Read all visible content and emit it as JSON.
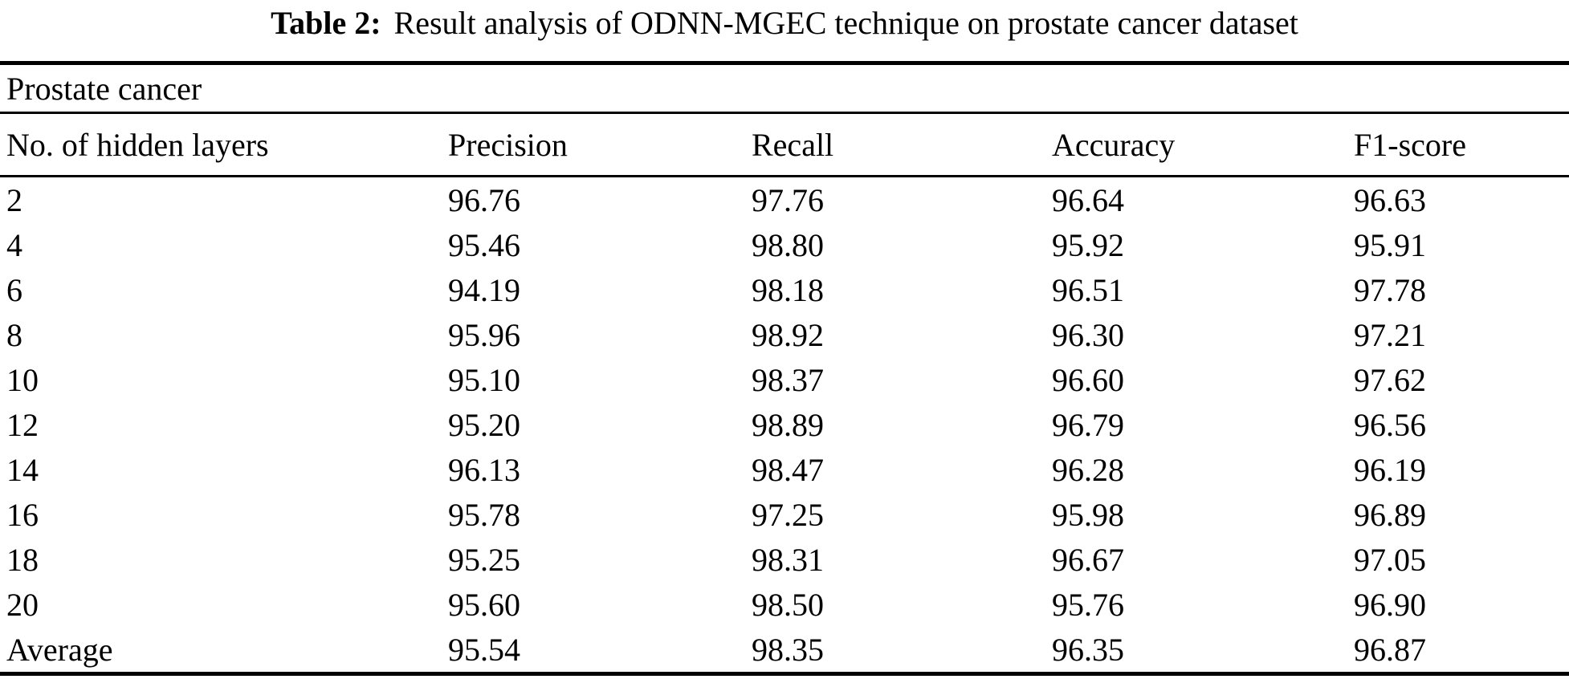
{
  "title": {
    "label": "Table 2:",
    "text": "Result analysis of ODNN-MGEC technique on prostate cancer dataset"
  },
  "table": {
    "group_header": "Prostate cancer",
    "columns": [
      "No. of hidden layers",
      "Precision",
      "Recall",
      "Accuracy",
      "F1-score"
    ],
    "rows": [
      [
        "2",
        "96.76",
        "97.76",
        "96.64",
        "96.63"
      ],
      [
        "4",
        "95.46",
        "98.80",
        "95.92",
        "95.91"
      ],
      [
        "6",
        "94.19",
        "98.18",
        "96.51",
        "97.78"
      ],
      [
        "8",
        "95.96",
        "98.92",
        "96.30",
        "97.21"
      ],
      [
        "10",
        "95.10",
        "98.37",
        "96.60",
        "97.62"
      ],
      [
        "12",
        "95.20",
        "98.89",
        "96.79",
        "96.56"
      ],
      [
        "14",
        "96.13",
        "98.47",
        "96.28",
        "96.19"
      ],
      [
        "16",
        "95.78",
        "97.25",
        "95.98",
        "96.89"
      ],
      [
        "18",
        "95.25",
        "98.31",
        "96.67",
        "97.05"
      ],
      [
        "20",
        "95.60",
        "98.50",
        "95.76",
        "96.90"
      ],
      [
        "Average",
        "95.54",
        "98.35",
        "96.35",
        "96.87"
      ]
    ],
    "colors": {
      "text": "#000000",
      "background": "#ffffff",
      "rule": "#000000"
    }
  }
}
